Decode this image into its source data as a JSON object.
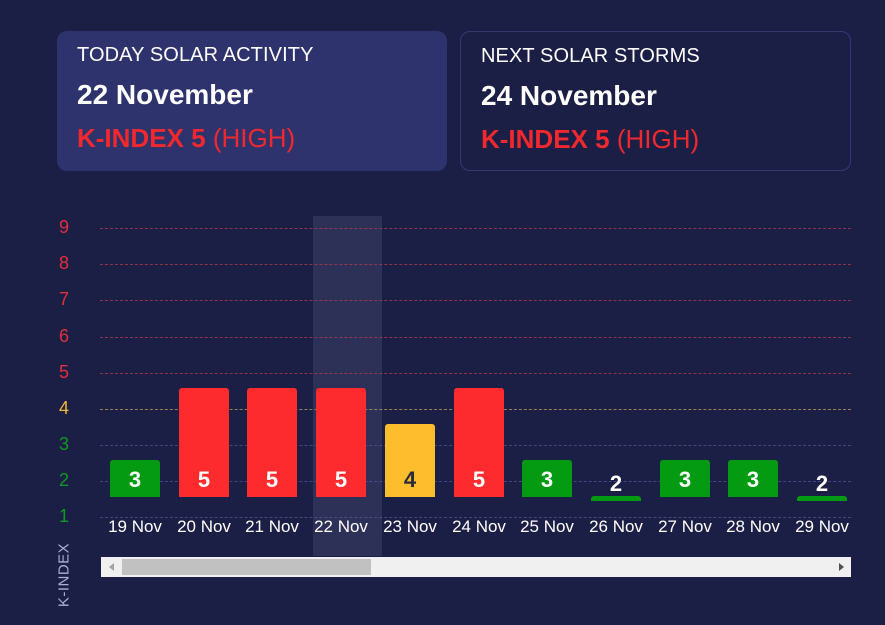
{
  "today": {
    "title": "TODAY SOLAR ACTIVITY",
    "date": "22 November",
    "kindex_label": "K-INDEX 5",
    "level": "(HIGH)"
  },
  "next": {
    "title": "NEXT SOLAR STORMS",
    "date": "24 November",
    "kindex_label": "K-INDEX 5",
    "level": "(HIGH)"
  },
  "colors": {
    "background": "#1c1f45",
    "today_card": "#2e336d",
    "high": "#fd2b2e",
    "medium": "#fdbd2c",
    "low": "#049b12",
    "highlight": "#2d3057"
  },
  "axis": {
    "y_title": "K-INDEX",
    "y_ticks": [
      "1",
      "2",
      "3",
      "4",
      "5",
      "6",
      "7",
      "8",
      "9"
    ]
  },
  "chart_data": {
    "type": "bar",
    "title": "",
    "xlabel": "",
    "ylabel": "K-INDEX",
    "ylim": [
      1,
      9
    ],
    "grid": true,
    "categories": [
      "19 Nov",
      "20 Nov",
      "21 Nov",
      "22 Nov",
      "23 Nov",
      "24 Nov",
      "25 Nov",
      "26 Nov",
      "27 Nov",
      "28 Nov",
      "29 Nov"
    ],
    "values": [
      3,
      5,
      5,
      5,
      4,
      5,
      3,
      2,
      3,
      3,
      2
    ],
    "highlighted_category": "22 Nov",
    "color_scale": {
      "1-3": "#049b12",
      "4": "#fdbd2c",
      "5-9": "#fd2b2e"
    }
  },
  "scrollbar": {
    "left_arrow": "scroll-left",
    "right_arrow": "scroll-right"
  }
}
